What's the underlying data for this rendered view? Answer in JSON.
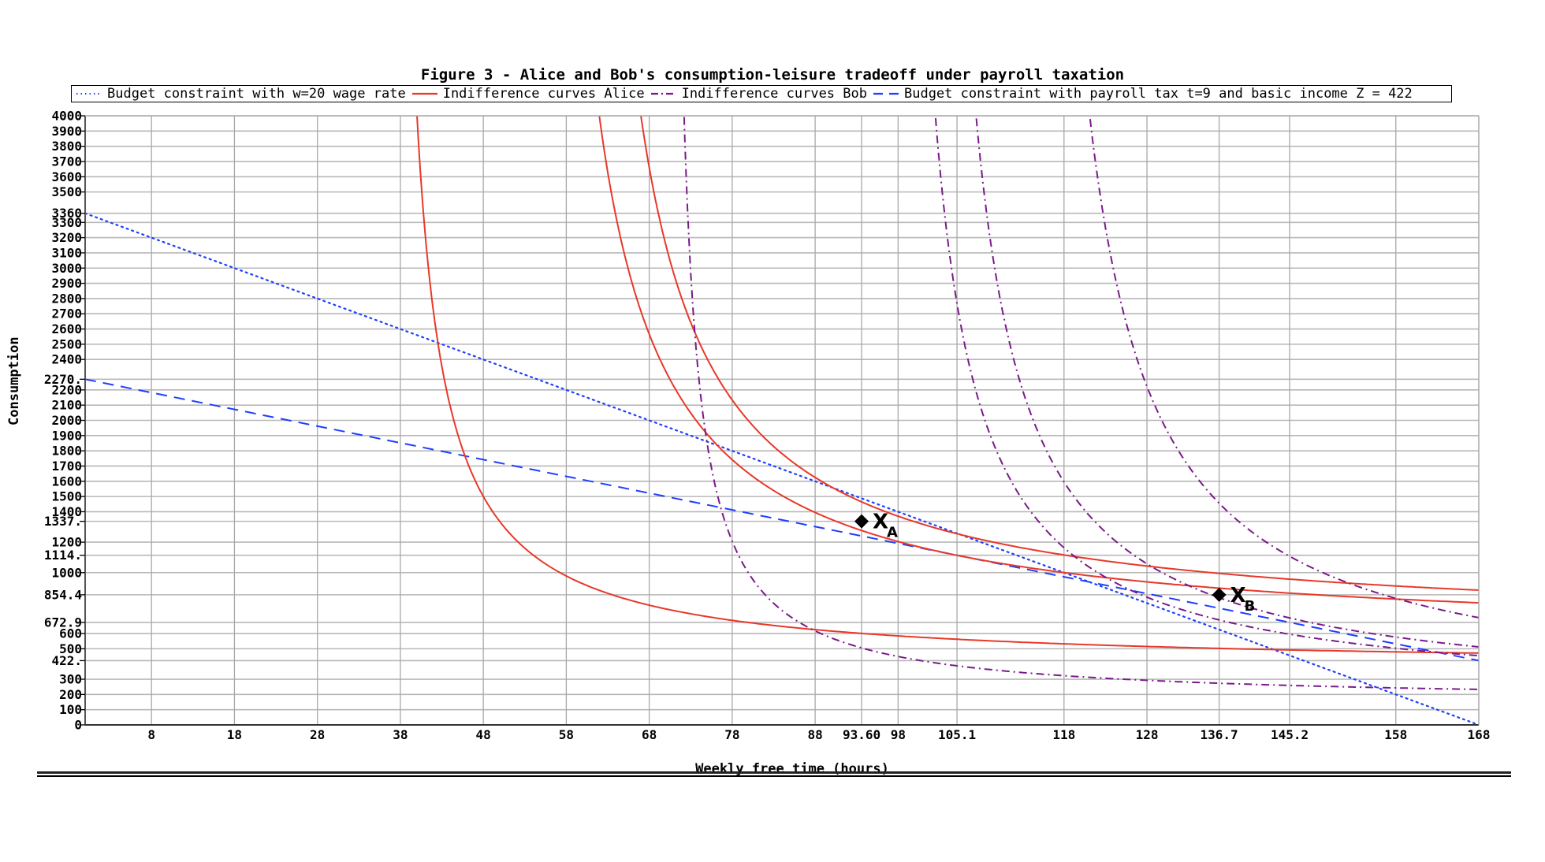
{
  "title": "Figure 3 - Alice and Bob's consumption-leisure tradeoff under payroll taxation",
  "legend": [
    {
      "label": "Budget constraint with w=20 wage rate",
      "color": "#1f3fff",
      "style": "dotted"
    },
    {
      "label": "Indifference curves Alice",
      "color": "#e8382a",
      "style": "solid"
    },
    {
      "label": "Indifference curves Bob",
      "color": "#7a1a8a",
      "style": "dashdot"
    },
    {
      "label": "Budget constraint with payroll tax t=9 and basic income Z = 422",
      "color": "#1f3fff",
      "style": "dashed"
    }
  ],
  "axes": {
    "xlabel": "Weekly free time (hours)",
    "ylabel": "Consumption"
  },
  "markers": [
    {
      "label": "X",
      "sub": "A",
      "x": 93.6,
      "y": 1337
    },
    {
      "label": "X",
      "sub": "B",
      "x": 136.7,
      "y": 854.4
    }
  ],
  "chart_data": {
    "type": "line",
    "title": "Figure 3 - Alice and Bob's consumption-leisure tradeoff under payroll taxation",
    "xlabel": "Weekly free time (hours)",
    "ylabel": "Consumption",
    "xlim": [
      0,
      168
    ],
    "ylim": [
      0,
      4000
    ],
    "grid": true,
    "legend_position": "top",
    "x_ticks": [
      "8",
      "18",
      "28",
      "38",
      "48",
      "58",
      "68",
      "78",
      "88",
      "93.60",
      "98",
      "105.1",
      "118",
      "128",
      "136.7",
      "145.2",
      "158",
      "168"
    ],
    "x_tick_values": [
      8,
      18,
      28,
      38,
      48,
      58,
      68,
      78,
      88,
      93.6,
      98,
      105.1,
      118,
      128,
      136.7,
      145.2,
      158,
      168
    ],
    "y_ticks": [
      "0",
      "100",
      "200",
      "300",
      "422.",
      "500",
      "600",
      "672.9",
      "854.4",
      "1000",
      "1114.",
      "1200",
      "1337.",
      "1400",
      "1500",
      "1600",
      "1700",
      "1800",
      "1900",
      "2000",
      "2100",
      "2200",
      "2270.",
      "2400",
      "2500",
      "2600",
      "2700",
      "2800",
      "2900",
      "3000",
      "3100",
      "3200",
      "3300",
      "3360",
      "3500",
      "3600",
      "3700",
      "3800",
      "3900",
      "4000"
    ],
    "y_tick_values": [
      0,
      100,
      200,
      300,
      422,
      500,
      600,
      672.9,
      854.4,
      1000,
      1114,
      1200,
      1337,
      1400,
      1500,
      1600,
      1700,
      1800,
      1900,
      2000,
      2100,
      2200,
      2270,
      2400,
      2500,
      2600,
      2700,
      2800,
      2900,
      3000,
      3100,
      3200,
      3300,
      3360,
      3500,
      3600,
      3700,
      3800,
      3900,
      4000
    ],
    "series": [
      {
        "name": "Budget constraint with w=20 wage rate",
        "kind": "line",
        "points": [
          [
            0,
            3360
          ],
          [
            168,
            0
          ]
        ],
        "color": "#1f3fff",
        "style": "dotted"
      },
      {
        "name": "Budget constraint with payroll tax t=9 and basic income Z = 422",
        "kind": "line",
        "points": [
          [
            0,
            2270
          ],
          [
            168,
            422
          ]
        ],
        "color": "#1f3fff",
        "style": "dashed"
      },
      {
        "name": "Indifference curves Alice",
        "kind": "hyperbola",
        "a": 36.4,
        "k": 13090,
        "b": 372,
        "color": "#e8382a",
        "style": "solid"
      },
      {
        "name": "Indifference curves Alice",
        "kind": "hyperbola",
        "a": 53.5,
        "k": 29294,
        "b": 546,
        "color": "#e8382a",
        "style": "solid"
      },
      {
        "name": "Indifference curves Alice",
        "kind": "hyperbola",
        "a": 58,
        "k": 30540,
        "b": 607,
        "color": "#e8382a",
        "style": "solid"
      },
      {
        "name": "Indifference curves Bob",
        "kind": "hyperbola",
        "a": 70,
        "k": 8478,
        "b": 146.5,
        "color": "#7a1a8a",
        "style": "dashdot"
      },
      {
        "name": "Indifference curves Bob",
        "kind": "hyperbola",
        "a": 97,
        "k": 21135,
        "b": 157,
        "color": "#7a1a8a",
        "style": "dashdot"
      },
      {
        "name": "Indifference curves Bob",
        "kind": "hyperbola",
        "a": 101,
        "k": 24680,
        "b": 144,
        "color": "#7a1a8a",
        "style": "dashdot"
      },
      {
        "name": "Indifference curves Bob",
        "kind": "hyperbola",
        "a": 113,
        "k": 31307,
        "b": 135,
        "color": "#7a1a8a",
        "style": "dashdot"
      }
    ],
    "annotations": [
      {
        "text": "X_A",
        "x": 93.6,
        "y": 1337
      },
      {
        "text": "X_B",
        "x": 136.7,
        "y": 854.4
      }
    ]
  }
}
